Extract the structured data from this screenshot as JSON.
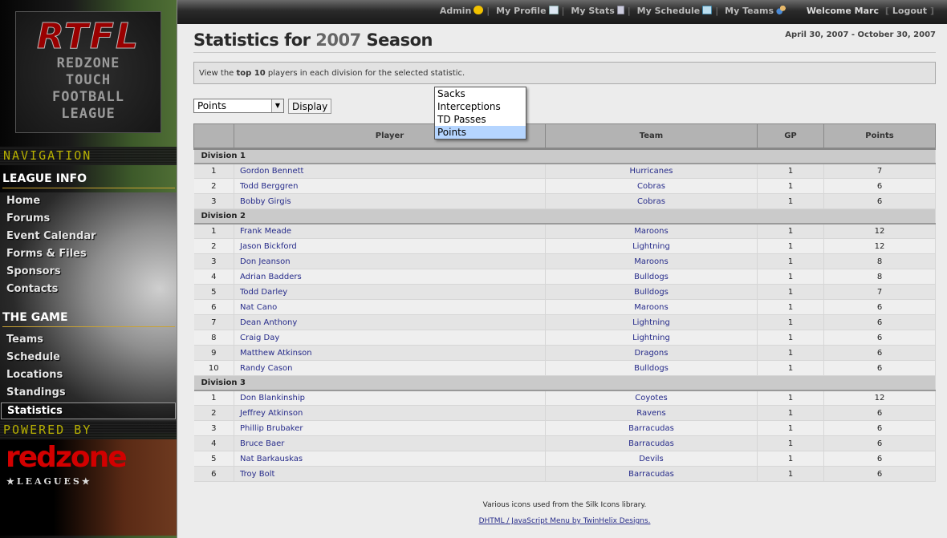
{
  "logo": {
    "initials": "RTFL",
    "lines": [
      "REDZONE",
      "TOUCH",
      "FOOTBALL",
      "LEAGUE"
    ]
  },
  "sidebar": {
    "nav_title": "NAVIGATION",
    "sections": [
      {
        "title": "LEAGUE INFO",
        "items": [
          "Home",
          "Forums",
          "Event Calendar",
          "Forms & Files",
          "Sponsors",
          "Contacts"
        ]
      },
      {
        "title": "THE GAME",
        "items": [
          "Teams",
          "Schedule",
          "Locations",
          "Standings",
          "Statistics"
        ]
      }
    ],
    "active": "Statistics",
    "powered_by": "POWERED BY",
    "brand": "redzone",
    "brand_sub": "★LEAGUES★"
  },
  "topbar": {
    "admin": "Admin",
    "profile": "My Profile",
    "stats": "My Stats",
    "schedule": "My Schedule",
    "teams": "My Teams",
    "welcome": "Welcome Marc",
    "logout": "Logout"
  },
  "page": {
    "title_pre": "Statistics for ",
    "title_year": "2007",
    "title_post": " Season",
    "dates": "April 30, 2007 - October 30, 2007",
    "info_pre": "View the ",
    "info_bold": "top 10",
    "info_post": " players in each division for the selected statistic."
  },
  "stat_select": {
    "value": "Points",
    "options": [
      "Sacks",
      "Interceptions",
      "TD Passes",
      "Points"
    ],
    "display_label": "Display"
  },
  "table": {
    "headers": [
      "",
      "Player",
      "Team",
      "GP",
      "Points"
    ],
    "divisions": [
      {
        "name": "Division 1",
        "rows": [
          [
            1,
            "Gordon Bennett",
            "Hurricanes",
            1,
            7
          ],
          [
            2,
            "Todd Berggren",
            "Cobras",
            1,
            6
          ],
          [
            3,
            "Bobby Girgis",
            "Cobras",
            1,
            6
          ]
        ]
      },
      {
        "name": "Division 2",
        "rows": [
          [
            1,
            "Frank Meade",
            "Maroons",
            1,
            12
          ],
          [
            2,
            "Jason Bickford",
            "Lightning",
            1,
            12
          ],
          [
            3,
            "Don Jeanson",
            "Maroons",
            1,
            8
          ],
          [
            4,
            "Adrian Badders",
            "Bulldogs",
            1,
            8
          ],
          [
            5,
            "Todd Darley",
            "Bulldogs",
            1,
            7
          ],
          [
            6,
            "Nat Cano",
            "Maroons",
            1,
            6
          ],
          [
            7,
            "Dean Anthony",
            "Lightning",
            1,
            6
          ],
          [
            8,
            "Craig Day",
            "Lightning",
            1,
            6
          ],
          [
            9,
            "Matthew Atkinson",
            "Dragons",
            1,
            6
          ],
          [
            10,
            "Randy Cason",
            "Bulldogs",
            1,
            6
          ]
        ]
      },
      {
        "name": "Division 3",
        "rows": [
          [
            1,
            "Don Blankinship",
            "Coyotes",
            1,
            12
          ],
          [
            2,
            "Jeffrey Atkinson",
            "Ravens",
            1,
            6
          ],
          [
            3,
            "Phillip Brubaker",
            "Barracudas",
            1,
            6
          ],
          [
            4,
            "Bruce Baer",
            "Barracudas",
            1,
            6
          ],
          [
            5,
            "Nat Barkauskas",
            "Devils",
            1,
            6
          ],
          [
            6,
            "Troy Bolt",
            "Barracudas",
            1,
            6
          ]
        ]
      }
    ]
  },
  "footer": {
    "line1": "Various icons used from the Silk Icons library.",
    "line2": "DHTML / JavaScript Menu by TwinHelix Designs."
  }
}
